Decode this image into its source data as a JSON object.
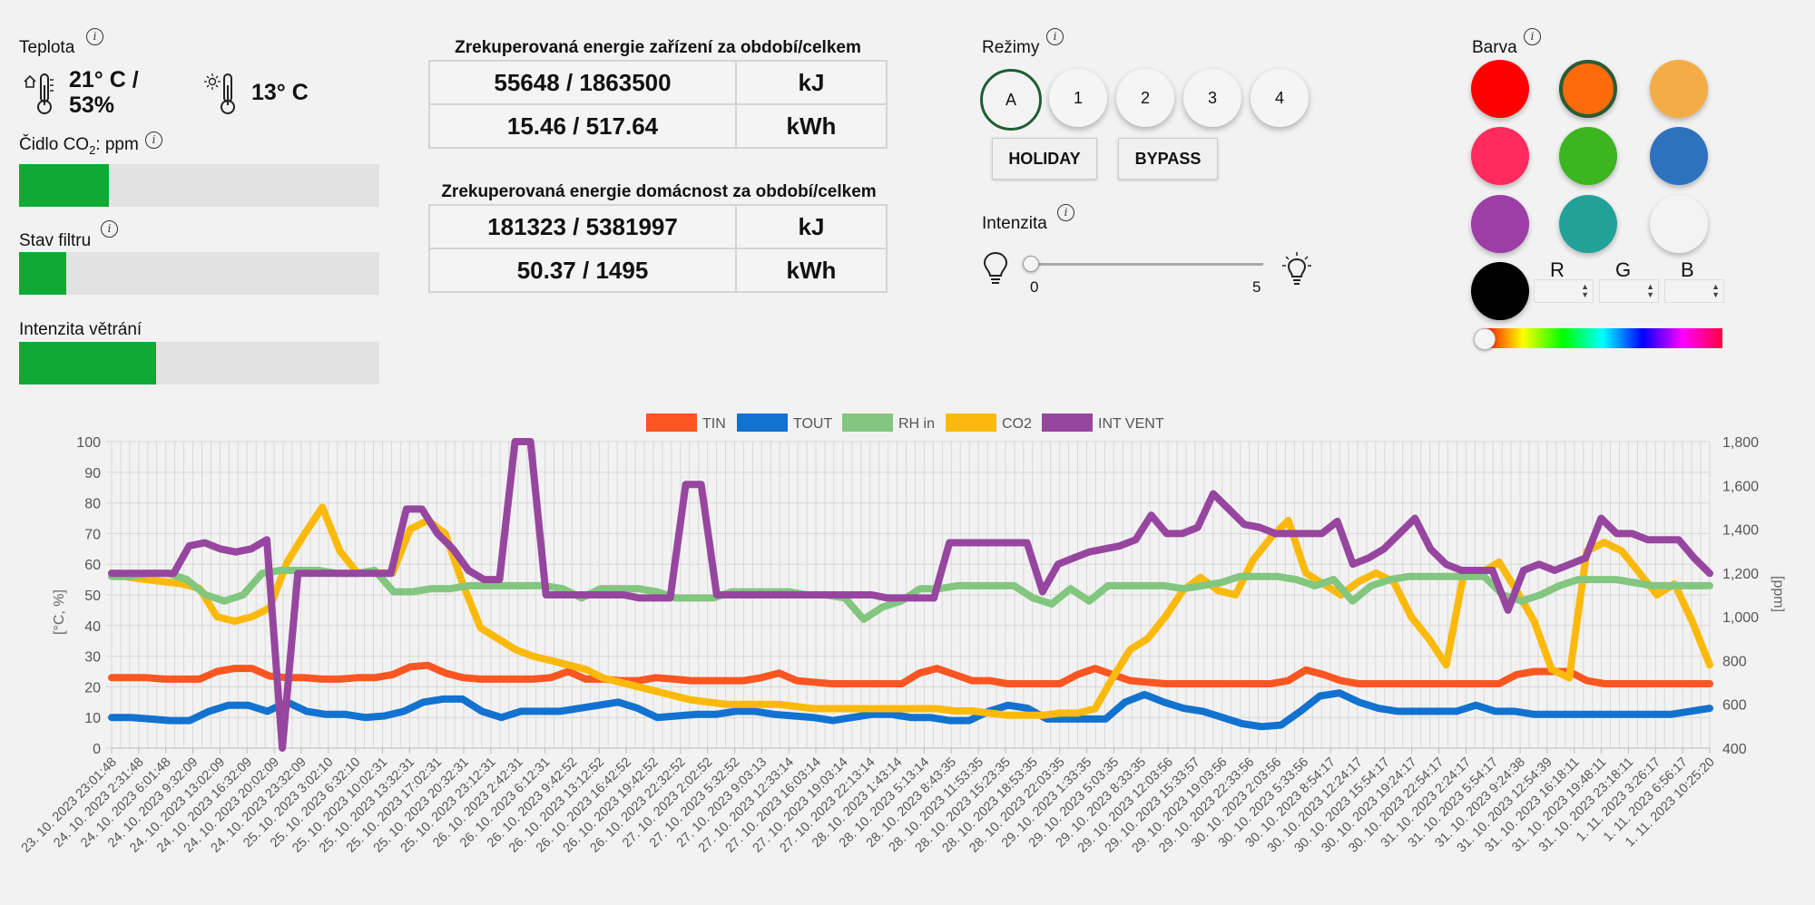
{
  "temperature": {
    "label": "Teplota",
    "indoor_value": "21° C /",
    "indoor_humidity": "53%",
    "outdoor_value": "13° C"
  },
  "co2": {
    "label_pre": "Čidlo CO",
    "label_sub": "2",
    "label_post": ": ppm",
    "level": 0.25
  },
  "filter": {
    "label": "Stav filtru",
    "level": 0.13
  },
  "ventilation": {
    "label": "Intenzita větrání",
    "level": 0.38
  },
  "energy_device": {
    "title": "Zrekuperovaná energie zařízení za období/celkem",
    "rows": [
      {
        "value": "55648 / 1863500",
        "unit": "kJ"
      },
      {
        "value": "15.46 / 517.64",
        "unit": "kWh"
      }
    ]
  },
  "energy_household": {
    "title": "Zrekuperovaná energie domácnost za období/celkem",
    "rows": [
      {
        "value": "181323 / 5381997",
        "unit": "kJ"
      },
      {
        "value": "50.37 / 1495",
        "unit": "kWh"
      }
    ]
  },
  "modes": {
    "label": "Režimy",
    "items": [
      "A",
      "1",
      "2",
      "3",
      "4"
    ],
    "active": "A",
    "holiday_label": "HOLIDAY",
    "bypass_label": "BYPASS"
  },
  "intensity": {
    "label": "Intenzita",
    "min_label": "0",
    "max_label": "5",
    "value": 0
  },
  "color": {
    "label": "Barva",
    "swatches": [
      "#ff0000",
      "#ff6a0a",
      "#f4ad46",
      "#ff2a5e",
      "#3cb521",
      "#2e72be",
      "#9c3ea6",
      "#22a199",
      "#f3f3f3",
      "#000000"
    ],
    "active_index": 1,
    "r_label": "R",
    "g_label": "G",
    "b_label": "B"
  },
  "chart_data": {
    "type": "line",
    "legend": [
      {
        "name": "TIN",
        "color": "#fb5622"
      },
      {
        "name": "TOUT",
        "color": "#1272cf"
      },
      {
        "name": "RH in",
        "color": "#82c680"
      },
      {
        "name": "CO2",
        "color": "#fbba0b"
      },
      {
        "name": "INT VENT",
        "color": "#97469f"
      }
    ],
    "legend_position": "top-center",
    "ylabel_left": "[°C, %]",
    "ylabel_right": "[ppm]",
    "ylim_left": [
      0,
      100
    ],
    "ylim_right": [
      400,
      1800
    ],
    "yticks_left": [
      "0",
      "10",
      "20",
      "30",
      "40",
      "50",
      "60",
      "70",
      "80",
      "90",
      "100"
    ],
    "yticks_right": [
      "400",
      "600",
      "800",
      "1,000",
      "1,200",
      "1,400",
      "1,600",
      "1,800"
    ],
    "x_labels": [
      "23. 10. 2023 23:01:48",
      "24. 10. 2023 2:31:48",
      "24. 10. 2023 6:01:48",
      "24. 10. 2023 9:32:09",
      "24. 10. 2023 13:02:09",
      "24. 10. 2023 16:32:09",
      "24. 10. 2023 20:02:09",
      "24. 10. 2023 23:32:09",
      "25. 10. 2023 3:02:10",
      "25. 10. 2023 6:32:10",
      "25. 10. 2023 10:02:31",
      "25. 10. 2023 13:32:31",
      "25. 10. 2023 17:02:31",
      "25. 10. 2023 20:32:31",
      "25. 10. 2023 23:12:31",
      "26. 10. 2023 2:42:31",
      "26. 10. 2023 6:12:31",
      "26. 10. 2023 9:42:52",
      "26. 10. 2023 13:12:52",
      "26. 10. 2023 16:42:52",
      "26. 10. 2023 19:42:52",
      "26. 10. 2023 22:32:52",
      "27. 10. 2023 2:02:52",
      "27. 10. 2023 5:32:52",
      "27. 10. 2023 9:03:13",
      "27. 10. 2023 12:33:14",
      "27. 10. 2023 16:03:14",
      "27. 10. 2023 19:03:14",
      "27. 10. 2023 22:13:14",
      "28. 10. 2023 1:43:14",
      "28. 10. 2023 5:13:14",
      "28. 10. 2023 8:43:35",
      "28. 10. 2023 11:53:35",
      "28. 10. 2023 15:23:35",
      "28. 10. 2023 18:53:35",
      "28. 10. 2023 22:03:35",
      "29. 10. 2023 1:33:35",
      "29. 10. 2023 5:03:35",
      "29. 10. 2023 8:33:35",
      "29. 10. 2023 12:03:56",
      "29. 10. 2023 15:33:57",
      "29. 10. 2023 19:03:56",
      "29. 10. 2023 22:33:56",
      "30. 10. 2023 2:03:56",
      "30. 10. 2023 5:33:56",
      "30. 10. 2023 8:54:17",
      "30. 10. 2023 12:24:17",
      "30. 10. 2023 15:54:17",
      "30. 10. 2023 19:24:17",
      "30. 10. 2023 22:54:17",
      "31. 10. 2023 2:24:17",
      "31. 10. 2023 5:54:17",
      "31. 10. 2023 9:24:38",
      "31. 10. 2023 12:54:39",
      "31. 10. 2023 16:18:11",
      "31. 10. 2023 19:48:11",
      "31. 10. 2023 23:18:11",
      "1. 11. 2023 3:26:17",
      "1. 11. 2023 6:56:17",
      "1. 11. 2023 10:25:20"
    ],
    "series": [
      {
        "name": "TIN",
        "axis": "left",
        "values": [
          23,
          23,
          23,
          22.5,
          22.5,
          22.5,
          25,
          26,
          26,
          23.5,
          23,
          23,
          22.5,
          22.5,
          23,
          23,
          24,
          26.5,
          27,
          24.5,
          23,
          22.5,
          22.5,
          22.5,
          22.5,
          23,
          25,
          22.5,
          22.5,
          22,
          22,
          23,
          22.5,
          22,
          22,
          22,
          22,
          23,
          24.5,
          22,
          21.5,
          21,
          21,
          21,
          21,
          21,
          24.5,
          26,
          24,
          22,
          22,
          21,
          21,
          21,
          21,
          24,
          26,
          24,
          22,
          21.5,
          21,
          21,
          21,
          21,
          21,
          21,
          21,
          22,
          25.5,
          24,
          22,
          21,
          21,
          21,
          21,
          21,
          21,
          21,
          21,
          21,
          24,
          25,
          25,
          25,
          22,
          21,
          21,
          21,
          21,
          21,
          21,
          21
        ]
      },
      {
        "name": "TOUT",
        "axis": "left",
        "values": [
          10,
          10,
          9.5,
          9,
          9,
          12,
          14,
          14,
          12,
          15,
          12,
          11,
          11,
          10,
          10.5,
          12,
          15,
          16,
          16,
          12,
          10,
          12,
          12,
          12,
          13,
          14,
          15,
          13,
          10,
          10.5,
          11,
          11,
          12,
          12,
          11,
          10.5,
          10,
          9,
          10,
          11,
          11,
          10,
          10,
          9,
          9,
          12,
          14,
          13,
          9.5,
          9.5,
          9.5,
          9.5,
          15,
          17.5,
          15,
          13,
          12,
          10,
          8,
          7,
          7.5,
          12,
          17,
          18,
          15,
          13,
          12,
          12,
          12,
          12,
          14,
          12,
          12,
          11,
          11,
          11,
          11,
          11,
          11,
          11,
          11,
          12,
          13
        ]
      },
      {
        "name": "RH in",
        "axis": "left",
        "values": [
          56,
          56,
          57,
          57,
          55,
          50,
          48,
          50,
          57,
          58,
          58,
          58,
          57,
          57,
          58,
          51,
          51,
          52,
          52,
          53,
          53,
          53,
          53,
          53,
          52,
          49,
          52,
          52,
          52,
          51,
          49,
          49,
          49,
          51,
          51,
          51,
          51,
          50,
          50,
          49,
          42,
          46,
          48,
          52,
          52,
          53,
          53,
          53,
          53,
          49,
          47,
          52,
          48,
          53,
          53,
          53,
          53,
          52,
          53,
          54,
          56,
          56,
          56,
          55,
          53,
          55,
          48,
          53,
          55,
          56,
          56,
          56,
          56,
          56,
          50,
          48,
          50,
          53,
          55,
          55,
          55,
          54,
          53,
          53,
          53,
          53
        ]
      },
      {
        "name": "CO2",
        "axis": "right",
        "values": [
          1200,
          1180,
          1170,
          1160,
          1150,
          1130,
          1000,
          980,
          1000,
          1040,
          1250,
          1380,
          1500,
          1300,
          1200,
          1200,
          1200,
          1400,
          1440,
          1380,
          1150,
          950,
          900,
          850,
          820,
          800,
          780,
          760,
          720,
          700,
          680,
          660,
          640,
          620,
          610,
          600,
          600,
          600,
          600,
          590,
          580,
          580,
          580,
          580,
          580,
          580,
          580,
          580,
          570,
          570,
          560,
          550,
          550,
          550,
          560,
          560,
          580,
          720,
          850,
          900,
          1000,
          1120,
          1180,
          1120,
          1100,
          1260,
          1360,
          1440,
          1200,
          1150,
          1100,
          1160,
          1200,
          1160,
          1000,
          900,
          780,
          1200,
          1200,
          1250,
          1120,
          980,
          760,
          720,
          1300,
          1340,
          1300,
          1200,
          1100,
          1150,
          980,
          780
        ]
      },
      {
        "name": "INT VENT",
        "axis": "left",
        "values": [
          57,
          57,
          57,
          57,
          57,
          66,
          67,
          65,
          64,
          65,
          68,
          0,
          57,
          57,
          57,
          57,
          57,
          57,
          57,
          78,
          78,
          70,
          65,
          58,
          55,
          55,
          100,
          100,
          50,
          50,
          50,
          50,
          50,
          50,
          49,
          49,
          49,
          86,
          86,
          50,
          50,
          50,
          50,
          50,
          50,
          50,
          50,
          50,
          50,
          50,
          49,
          49,
          49,
          49,
          67,
          67,
          67,
          67,
          67,
          67,
          51,
          60,
          62,
          64,
          65,
          66,
          68,
          76,
          70,
          70,
          72,
          83,
          78,
          73,
          72,
          70,
          70,
          70,
          70,
          74,
          60,
          62,
          65,
          70,
          75,
          65,
          60,
          58,
          58,
          58,
          45,
          58,
          60,
          58,
          60,
          62,
          75,
          70,
          70,
          68,
          68,
          68,
          62,
          57
        ]
      }
    ]
  }
}
